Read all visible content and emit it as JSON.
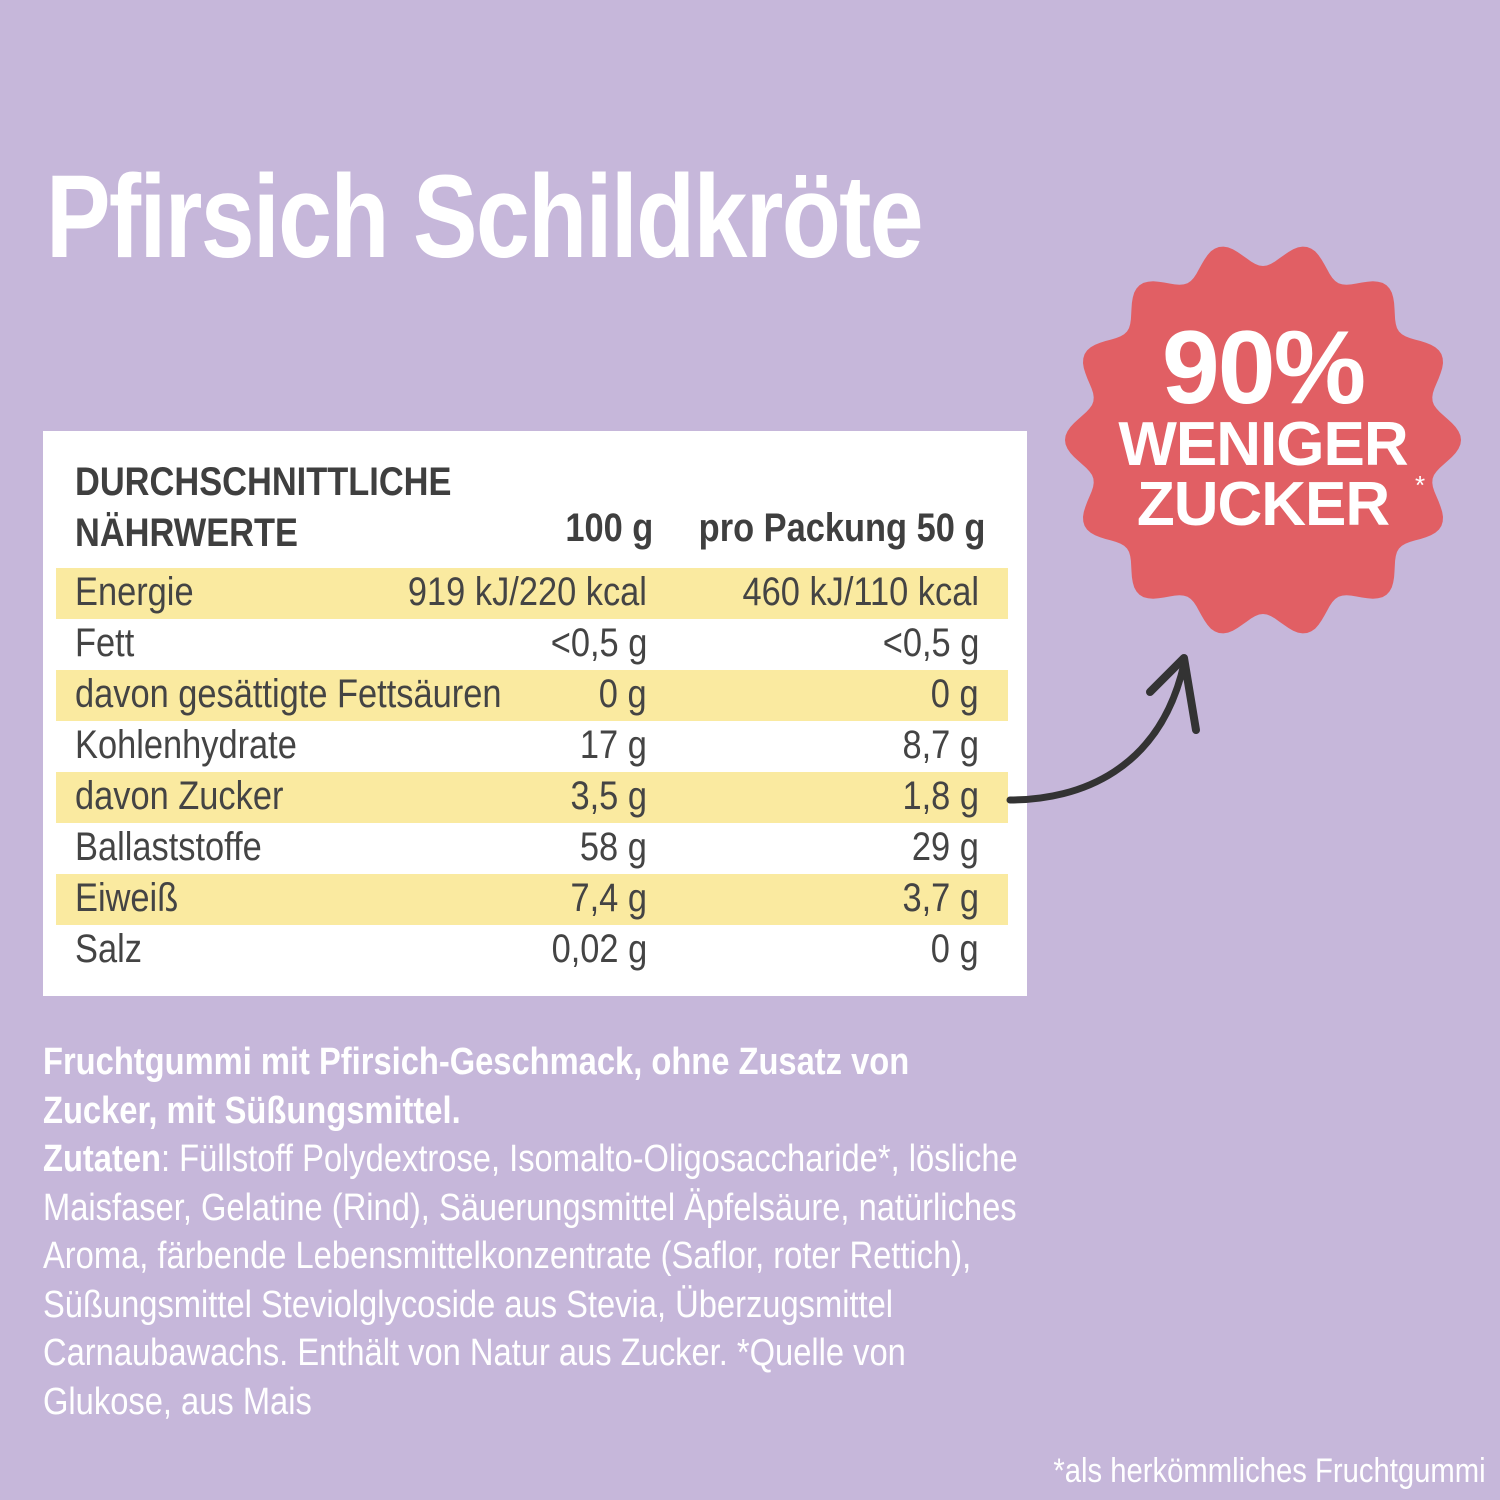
{
  "title": "Pfirsich Schildkröte",
  "nutrition": {
    "header_line1": "DURCHSCHNITTLICHE",
    "header_line2": "NÄHRWERTE",
    "col_100": "100 g",
    "col_pack": "pro Packung 50 g",
    "rows": [
      {
        "name": "Energie",
        "per100": "919 kJ/220 kcal",
        "pack": "460 kJ/110 kcal",
        "highlight": true
      },
      {
        "name": "Fett",
        "per100": "<0,5 g",
        "pack": "<0,5 g",
        "highlight": false
      },
      {
        "name": "davon gesättigte Fettsäuren",
        "per100": "0 g",
        "pack": "0 g",
        "highlight": true
      },
      {
        "name": "Kohlenhydrate",
        "per100": "17 g",
        "pack": "8,7 g",
        "highlight": false
      },
      {
        "name": "davon Zucker",
        "per100": "3,5 g",
        "pack": "1,8 g",
        "highlight": true
      },
      {
        "name": "Ballaststoffe",
        "per100": "58 g",
        "pack": "29 g",
        "highlight": false
      },
      {
        "name": "Eiweiß",
        "per100": "7,4 g",
        "pack": "3,7 g",
        "highlight": true
      },
      {
        "name": "Salz",
        "per100": "0,02 g",
        "pack": "0 g",
        "highlight": false
      }
    ]
  },
  "badge": {
    "line1": "90%",
    "line2": "WENIGER",
    "line3": "ZUCKER",
    "asterisk": "*"
  },
  "description": {
    "intro": "Fruchtgummi mit Pfirsich-Geschmack, ohne Zusatz von Zucker, mit Süßungsmittel.",
    "ingredients_label": "Zutaten",
    "ingredients_text": ": Füllstoff Polydextrose, Isomalto-Oligosaccharide*, lösliche Maisfaser, Gelatine (Rind), Säuerungsmittel Äpfelsäure, natürliches Aroma, färbende Lebensmittelkonzentrate (Saflor, roter Rettich), Süßungsmittel Steviolglycoside aus Stevia, Überzugsmittel Carnaubawachs. Enthält von Natur aus Zucker. *Quelle von Glukose, aus Mais"
  },
  "footnote": "*als herkömmliches Fruchtgummi",
  "colors": {
    "background": "#c6b7da",
    "badge": "#e15f64",
    "highlight": "#faeaa0",
    "text": "#444444"
  }
}
